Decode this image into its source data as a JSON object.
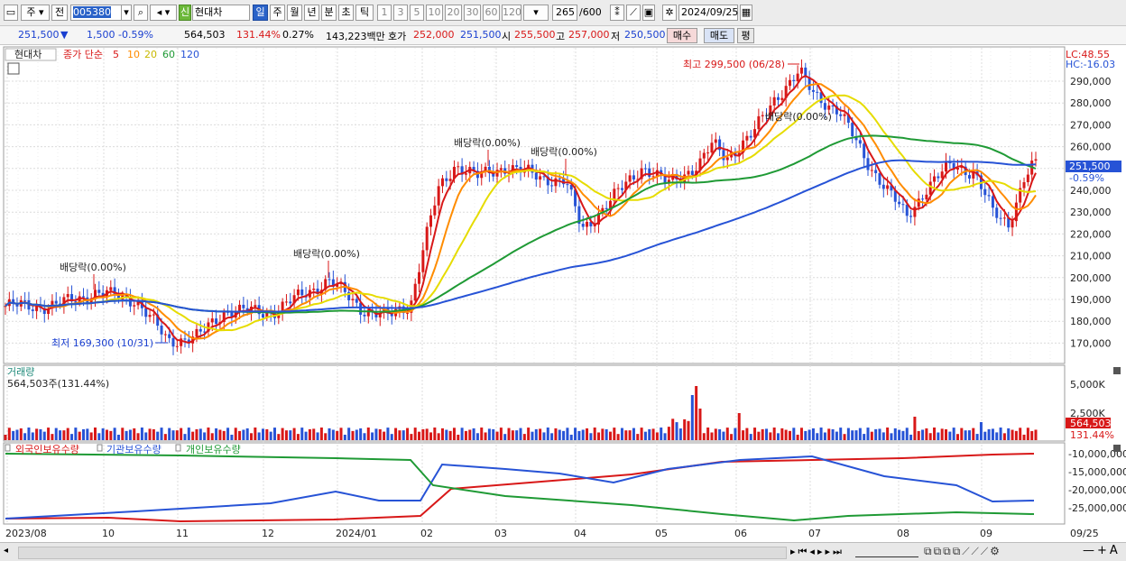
{
  "toolbar": {
    "type1": "주",
    "type2": "전",
    "code": "005380",
    "market_badge": "신",
    "stock_name": "현대차",
    "periods": [
      "일",
      "주",
      "월",
      "년",
      "분",
      "초",
      "틱"
    ],
    "selected_period": "일",
    "intervals": [
      "1",
      "3",
      "5",
      "10",
      "20",
      "30",
      "60",
      "120"
    ],
    "count": "265",
    "total": "/600",
    "date": "2024/09/25"
  },
  "quote": {
    "price": "251,500",
    "change": "1,500",
    "change_pct": "-0.59%",
    "volume": "564,503",
    "volume_ratio": "131.44%",
    "turnover": "0.27%",
    "amount": "143,223백만",
    "bid_label": "호가",
    "bid": "252,000",
    "ask": "251,500",
    "open_label": "시",
    "open": "255,500",
    "high_label": "고",
    "high": "257,000",
    "low_label": "저",
    "low": "250,500",
    "buy_button": "매수",
    "sell_button": "매도",
    "eval_button": "평"
  },
  "price_panel": {
    "name": "현대차",
    "ma_label": "종가 단순",
    "ma_periods": [
      "5",
      "10",
      "20",
      "60",
      "120"
    ],
    "ma_colors": [
      "#d81818",
      "#ff8c00",
      "#e6dc00",
      "#1f9a35",
      "#2753d6"
    ],
    "lc": "LC:48.55",
    "hc": "HC:-16.03",
    "price_axis": [
      "290,000",
      "280,000",
      "270,000",
      "260,000",
      "250,000",
      "240,000",
      "230,000",
      "220,000",
      "210,000",
      "200,000",
      "190,000",
      "180,000",
      "170,000"
    ],
    "current_price_tag": "251,500",
    "current_pct_tag": "-0.59%",
    "high_note": "최고 299,500 (06/28)",
    "low_note": "최저 169,300 (10/31)",
    "dividend_note": "배당락(0.00%)"
  },
  "volume_panel": {
    "title": "거래량",
    "value": "564,503주(131.44%)",
    "axis": [
      "5,000K",
      "2,500K"
    ],
    "tag1": "564,503",
    "tag2": "131.44%"
  },
  "holding_panel": {
    "series": [
      "외국인보유수량",
      "기관보유수량",
      "개인보유수량"
    ],
    "colors": [
      "#d81818",
      "#2753d6",
      "#1f9a35"
    ],
    "axis": [
      "-10,000,000",
      "-15,000,000",
      "-20,000,000",
      "-25,000,000"
    ]
  },
  "x_axis": [
    "2023/08",
    "10",
    "11",
    "12",
    "2024/01",
    "02",
    "03",
    "04",
    "05",
    "06",
    "07",
    "08",
    "09",
    "09/25"
  ]
}
